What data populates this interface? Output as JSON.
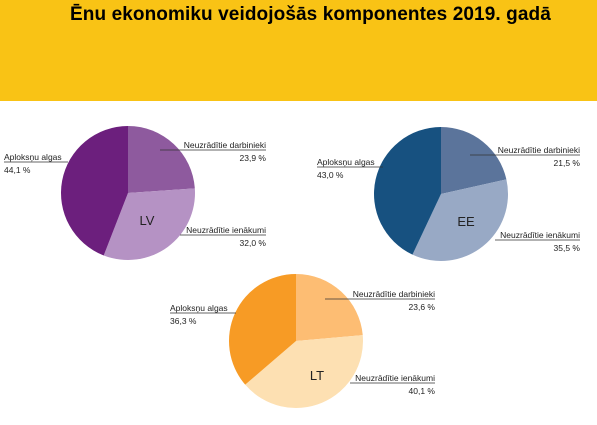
{
  "header": {
    "title": "Ēnu ekonomiku veidojošās komponentes 2019. gadā",
    "background_color": "#f9c315"
  },
  "chart_data": [
    {
      "type": "pie",
      "name": "LV",
      "slices": [
        {
          "label": "Neuzrādītie darbinieki",
          "value": 23.9,
          "value_text": "23,9 %",
          "color": "#8e5a9e"
        },
        {
          "label": "Neuzrādītie ienākumi",
          "value": 32.0,
          "value_text": "32,0 %",
          "color": "#b592c4"
        },
        {
          "label": "Aploksņu algas",
          "value": 44.1,
          "value_text": "44,1 %",
          "color": "#6c1f7d"
        }
      ]
    },
    {
      "type": "pie",
      "name": "EE",
      "slices": [
        {
          "label": "Neuzrādītie darbinieki",
          "value": 21.5,
          "value_text": "21,5 %",
          "color": "#5b749b"
        },
        {
          "label": "Neuzrādītie ienākumi",
          "value": 35.5,
          "value_text": "35,5 %",
          "color": "#98a9c5"
        },
        {
          "label": "Aploksņu algas",
          "value": 43.0,
          "value_text": "43,0 %",
          "color": "#175180"
        }
      ]
    },
    {
      "type": "pie",
      "name": "LT",
      "slices": [
        {
          "label": "Neuzrādītie darbinieki",
          "value": 23.6,
          "value_text": "23,6 %",
          "color": "#fdbd73"
        },
        {
          "label": "Neuzrādītie ienākumi",
          "value": 40.1,
          "value_text": "40,1 %",
          "color": "#fde0b2"
        },
        {
          "label": "Aploksņu algas",
          "value": 36.3,
          "value_text": "36,3 %",
          "color": "#f79b25"
        }
      ]
    }
  ]
}
